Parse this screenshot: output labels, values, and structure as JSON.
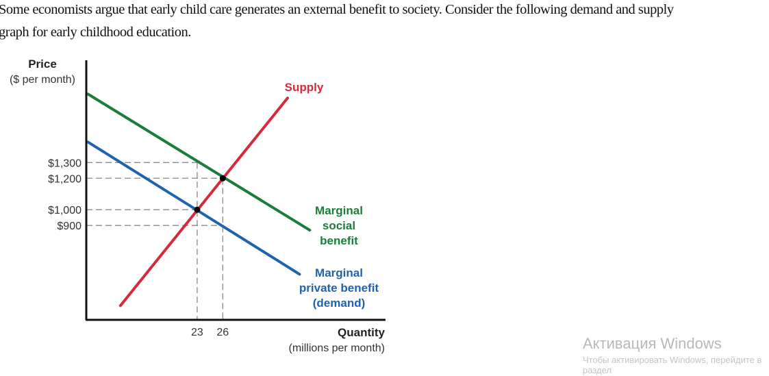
{
  "intro": {
    "line1": "Some economists argue that early child care generates an external benefit to society. Consider the following demand and supply",
    "line2": "graph for early childhood education."
  },
  "chart_data": {
    "type": "line",
    "title": "",
    "ylabel": "Price",
    "ylabel_unit": "($ per month)",
    "xlabel": "Quantity",
    "xlabel_unit": "(millions per month)",
    "xlim": [
      10,
      45
    ],
    "ylim": [
      300,
      1950
    ],
    "grid": false,
    "y_ticks": [
      {
        "value": 1300,
        "label": "$1,300"
      },
      {
        "value": 1200,
        "label": "$1,200"
      },
      {
        "value": 1000,
        "label": "$1,000"
      },
      {
        "value": 900,
        "label": "$900"
      }
    ],
    "x_ticks": [
      {
        "value": 23,
        "label": "23"
      },
      {
        "value": 26,
        "label": "26"
      }
    ],
    "series": [
      {
        "name": "Supply",
        "label_lines": [
          "Supply"
        ],
        "color": "#d42a3c",
        "x": [
          14,
          33.6
        ],
        "y": [
          390,
          1710
        ]
      },
      {
        "name": "Marginal social benefit",
        "label_lines": [
          "Marginal",
          "social",
          "benefit"
        ],
        "color": "#1a7d3a",
        "x": [
          10.2,
          36.2
        ],
        "y": [
          1735,
          870
        ]
      },
      {
        "name": "Marginal private benefit (demand)",
        "label_lines": [
          "Marginal",
          "private benefit",
          "(demand)"
        ],
        "color": "#1f63b0",
        "x": [
          10.2,
          35
        ],
        "y": [
          1430,
          590
        ]
      }
    ],
    "points": [
      {
        "x": 23,
        "y": 1000
      },
      {
        "x": 26,
        "y": 1200
      }
    ],
    "guides": [
      {
        "x": 23,
        "y": 1300
      },
      {
        "x": 26,
        "y": 1200
      },
      {
        "x": 23,
        "y": 1000
      },
      {
        "x": 26,
        "y": 900
      }
    ]
  },
  "watermark": {
    "line1": "Активация Windows",
    "line2": "Чтобы активировать Windows, перейдите в раздел"
  }
}
